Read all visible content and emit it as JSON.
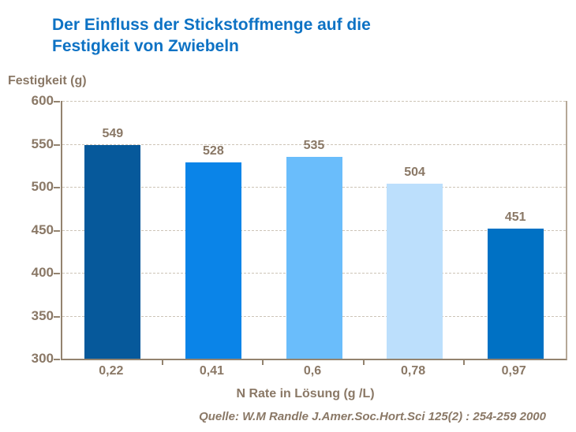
{
  "title": {
    "line1": "Der Einfluss der Stickstoffmenge auf die",
    "line2": "Festigkeit von Zwiebeln"
  },
  "source": "Quelle: W.M Randle  J.Amer.Soc.Hort.Sci 125(2) : 254-259 2000",
  "colors": {
    "title_blue": "#0d72c4",
    "text_brown": "#8a7866",
    "axis_line": "#93836f",
    "gridline": "#cdc4b7"
  },
  "chart_data": {
    "type": "bar",
    "title": "Der Einfluss der Stickstoffmenge auf die Festigkeit von Zwiebeln",
    "categories": [
      "0,22",
      "0,41",
      "0,6",
      "0,78",
      "0,97"
    ],
    "values": [
      549,
      528,
      535,
      504,
      451
    ],
    "value_labels": [
      "549",
      "528",
      "535",
      "504",
      "451"
    ],
    "bar_colors": [
      "#06599b",
      "#0a84e8",
      "#6abdfb",
      "#bcdffc",
      "#0071c4"
    ],
    "xlabel": "N Rate in Lösung (g /L)",
    "ylabel": "Festigkeit (g)",
    "ylim": [
      300,
      600
    ],
    "yticks": [
      600,
      550,
      500,
      450,
      400,
      350,
      300
    ],
    "grid": "horizontal-dashed",
    "legend": "none"
  }
}
